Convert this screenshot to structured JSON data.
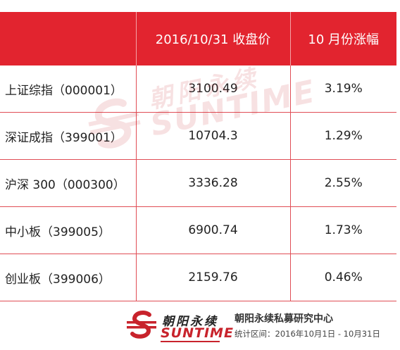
{
  "table": {
    "headers": [
      "",
      "2016/10/31 收盘价",
      "10 月份涨幅"
    ],
    "rows": [
      {
        "name": "上证综指（000001）",
        "close": "3100.49",
        "change": "3.19%"
      },
      {
        "name": "深证成指（399001）",
        "close": "10704.3",
        "change": "1.29%"
      },
      {
        "name": "沪深 300（000300）",
        "close": "3336.28",
        "change": "2.55%"
      },
      {
        "name": "中小板（399005）",
        "close": "6900.74",
        "change": "1.73%"
      },
      {
        "name": "创业板（399006）",
        "close": "2159.76",
        "change": "0.46%"
      }
    ]
  },
  "watermark": {
    "cn": "朝阳永续",
    "en": "SUNTIME"
  },
  "footer": {
    "brand_cn": "朝阳永续",
    "brand_en": "SUNTIME",
    "org_name": "朝阳永续私募研究中心",
    "stat_range": "统计区间：2016年10月1日 - 10月31日"
  },
  "colors": {
    "header_bg": "#e2242f",
    "brand_red": "#c8232c"
  }
}
